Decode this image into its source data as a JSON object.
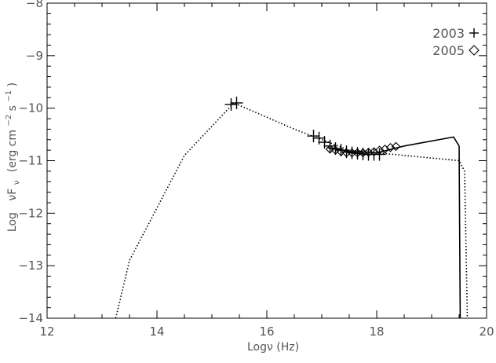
{
  "chart_data": {
    "type": "scatter",
    "x_axis": {
      "label": "Logν (Hz)",
      "range": [
        12,
        20
      ],
      "ticks": [
        12,
        14,
        16,
        18,
        20
      ],
      "tick_labels": [
        "12",
        "14",
        "16",
        "18",
        "20"
      ]
    },
    "y_axis": {
      "label_parts": [
        "Log",
        "νF",
        "ν",
        "(erg cm",
        "−2",
        " s",
        "−1",
        " )"
      ],
      "range": [
        -14,
        -8
      ],
      "ticks": [
        -14,
        -13,
        -12,
        -11,
        -10,
        -9,
        -8
      ],
      "tick_labels": [
        "−14",
        "−13",
        "−12",
        "−11",
        "−10",
        "−9",
        "−8"
      ]
    },
    "grid": false,
    "legend_position": "top-right",
    "series": [
      {
        "name": "2003",
        "marker": "plus",
        "x": [
          15.35,
          15.45,
          16.85,
          16.95,
          17.05,
          17.15,
          17.25,
          17.35,
          17.45,
          17.55,
          17.65,
          17.75,
          17.85,
          17.95,
          18.05
        ],
        "y": [
          -9.93,
          -9.9,
          -10.53,
          -10.57,
          -10.65,
          -10.72,
          -10.77,
          -10.8,
          -10.83,
          -10.85,
          -10.86,
          -10.87,
          -10.88,
          -10.88,
          -10.88
        ]
      },
      {
        "name": "2005",
        "marker": "diamond",
        "x": [
          17.15,
          17.25,
          17.35,
          17.45,
          17.55,
          17.65,
          17.75,
          17.85,
          17.95,
          18.05,
          18.15,
          18.25,
          18.35
        ],
        "y": [
          -10.78,
          -10.8,
          -10.83,
          -10.85,
          -10.85,
          -10.85,
          -10.85,
          -10.84,
          -10.83,
          -10.8,
          -10.78,
          -10.75,
          -10.73
        ]
      }
    ],
    "model_solid": {
      "x": [
        17.1,
        17.5,
        18.0,
        18.5,
        19.4,
        19.5,
        19.52
      ],
      "y": [
        -10.75,
        -10.82,
        -10.85,
        -10.72,
        -10.55,
        -10.72,
        -14.0
      ]
    },
    "model_dotted": {
      "x": [
        13.25,
        13.5,
        14.5,
        15.4,
        16.5,
        17.5,
        18.5,
        19.5,
        19.6,
        19.65
      ],
      "y": [
        -14.0,
        -12.9,
        -10.9,
        -9.9,
        -10.4,
        -10.8,
        -10.9,
        -11.0,
        -11.2,
        -14.0
      ]
    }
  }
}
